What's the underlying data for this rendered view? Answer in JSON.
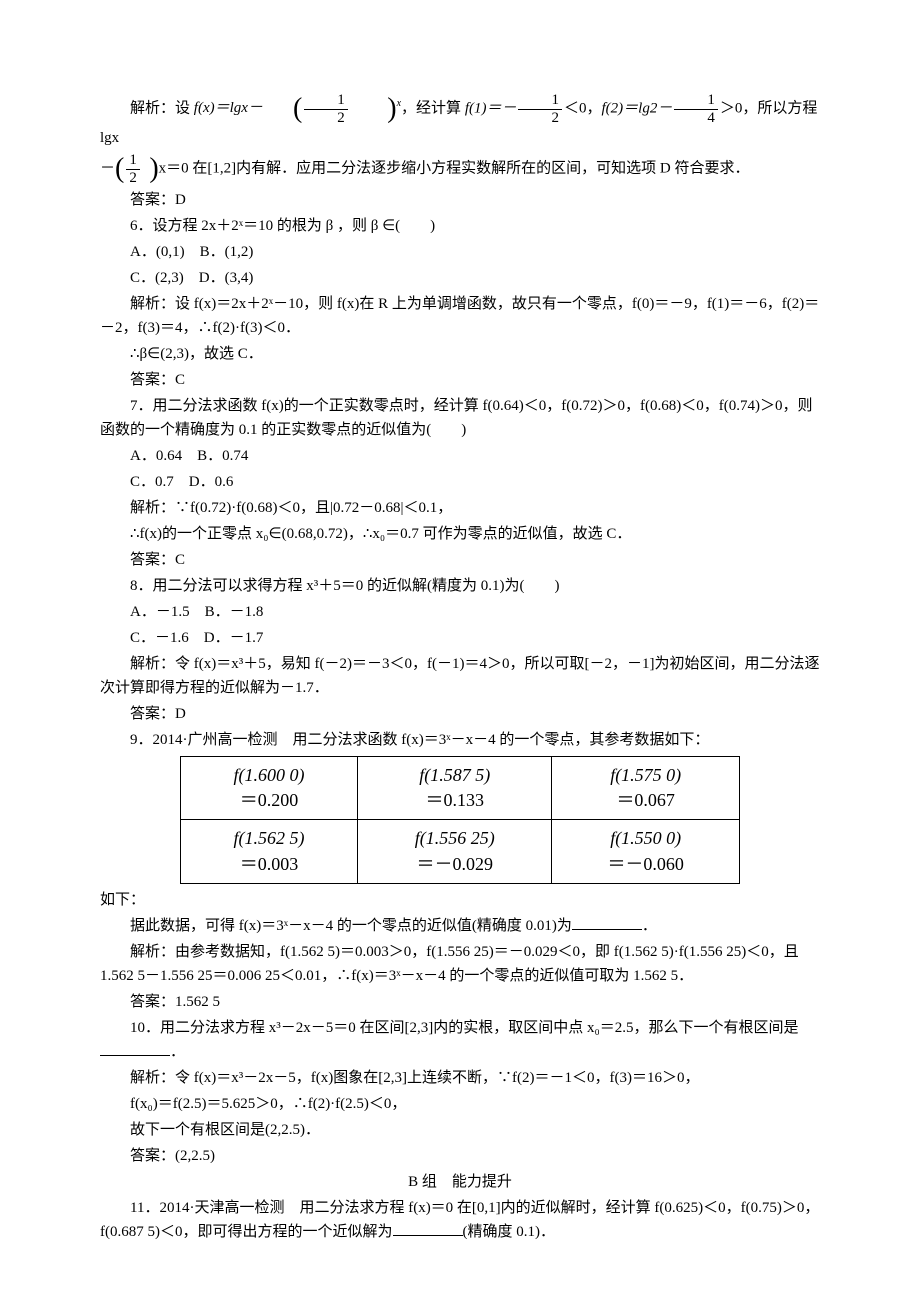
{
  "q5": {
    "analysis_label": "解析：",
    "analysis_p1a": "设 ",
    "fx_set": "f(x)＝lgx－",
    "frac_half_num": "1",
    "frac_half_den": "2",
    "exp_x": "x",
    "calc_text": "，经计算 ",
    "f1": "f(1)＝－",
    "frac_1_2_num": "1",
    "frac_1_2_den": "2",
    "lt0": "＜0，",
    "f2": "f(2)＝lg2－",
    "frac_1_4_num": "1",
    "frac_1_4_den": "4",
    "gt0": "＞0，所以方程 lgx",
    "line2a": "－",
    "line2b": "x＝0 在[1,2]内有解．应用二分法逐步缩小方程实数解所在的区间，可知选项 D 符合要求．",
    "answer_label": "答案：",
    "answer": "D"
  },
  "q6": {
    "stem_num": "6．",
    "stem": "设方程 2x＋2ˣ＝10 的根为 β ，则 β ∈(　　)",
    "opt_a": "A．(0,1)　B．(1,2)",
    "opt_c": "C．(2,3)　D．(3,4)",
    "analysis_label": "解析：",
    "analysis1": "设 f(x)＝2x＋2ˣ－10，则 f(x)在 R 上为单调增函数，故只有一个零点，f(0)＝－9，f(1)＝－6，f(2)＝－2，f(3)＝4，∴f(2)·f(3)＜0．",
    "analysis2": "∴β∈(2,3)，故选 C．",
    "answer_label": "答案：",
    "answer": "C"
  },
  "q7": {
    "stem_num": "7．",
    "stem": "用二分法求函数 f(x)的一个正实数零点时，经计算 f(0.64)＜0，f(0.72)＞0，f(0.68)＜0，f(0.74)＞0，则函数的一个精确度为 0.1 的正实数零点的近似值为(　　)",
    "opt_a": "A．0.64　B．0.74",
    "opt_c": "C．0.7　D．0.6",
    "analysis_label": "解析：",
    "analysis1": "∵f(0.72)·f(0.68)＜0，且|0.72－0.68|＜0.1，",
    "analysis2": "∴f(x)的一个正零点 x₀∈(0.68,0.72)，∴x₀＝0.7 可作为零点的近似值，故选 C．",
    "answer_label": "答案：",
    "answer": "C"
  },
  "q8": {
    "stem_num": "8．",
    "stem": "用二分法可以求得方程 x³＋5＝0 的近似解(精度为 0.1)为(　　)",
    "opt_a": "A．－1.5　B．－1.8",
    "opt_c": "C．－1.6　D．－1.7",
    "analysis_label": "解析：",
    "analysis": "令 f(x)＝x³＋5，易知 f(－2)＝－3＜0，f(－1)＝4＞0，所以可取[－2，－1]为初始区间，用二分法逐次计算即得方程的近似解为－1.7．",
    "answer_label": "答案：",
    "answer": "D"
  },
  "q9": {
    "stem_num": "9．",
    "stem_prefix": "2014·广州高一检测　用二分法求函数 f(x)＝3ˣ－x－4 的一个零点，其参考数据如下：",
    "table": {
      "r1c1a": "f(1.600 0)",
      "r1c1b": "＝0.200",
      "r1c2a": "f(1.587 5)",
      "r1c2b": "＝0.133",
      "r1c3a": "f(1.575 0)",
      "r1c3b": "＝0.067",
      "r2c1a": "f(1.562 5)",
      "r2c1b": "＝0.003",
      "r2c2a": "f(1.556 25)",
      "r2c2b": "＝－0.029",
      "r2c3a": "f(1.550 0)",
      "r2c3b": "＝－0.060"
    },
    "stem2": "据此数据，可得 f(x)＝3ˣ－x－4 的一个零点的近似值(精确度 0.01)为",
    "stem2_end": "．",
    "analysis_label": "解析：",
    "analysis": "由参考数据知，f(1.562 5)＝0.003＞0，f(1.556 25)＝－0.029＜0，即 f(1.562 5)·f(1.556 25)＜0，且 1.562 5－1.556 25＝0.006 25＜0.01，∴f(x)＝3ˣ－x－4 的一个零点的近似值可取为 1.562 5．",
    "answer_label": "答案：",
    "answer": "1.562 5"
  },
  "q10": {
    "stem_num": "10．",
    "stem1": "用二分法求方程 x³－2x－5＝0 在区间[2,3]内的实根，取区间中点 x₀＝2.5，那么下一个有根区间是",
    "stem1_end": "．",
    "analysis_label": "解析：",
    "analysis1": "令 f(x)＝x³－2x－5，f(x)图象在[2,3]上连续不断，∵f(2)＝－1＜0，f(3)＝16＞0，",
    "analysis2": "f(x₀)＝f(2.5)＝5.625＞0，∴f(2)·f(2.5)＜0，",
    "analysis3": "故下一个有根区间是(2,2.5)．",
    "answer_label": "答案：",
    "answer": "(2,2.5)"
  },
  "groupB": "B 组　能力提升",
  "q11": {
    "stem_num": "11．",
    "stem1": "2014·天津高一检测　用二分法求方程 f(x)＝0 在[0,1]内的近似解时，经计算 f(0.625)＜0，f(0.75)＞0，f(0.687 5)＜0，即可得出方程的一个近似解为",
    "stem1_end": "(精确度 0.1)．"
  }
}
